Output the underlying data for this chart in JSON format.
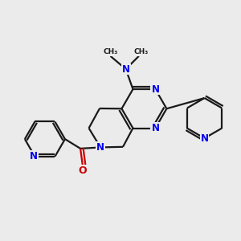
{
  "bg_color": "#ebebeb",
  "bond_color": "#1a1a1a",
  "N_color": "#0000ee",
  "O_color": "#cc0000",
  "line_width": 1.6,
  "font_size": 8.5,
  "xlim": [
    0,
    10
  ],
  "ylim": [
    0,
    10
  ]
}
